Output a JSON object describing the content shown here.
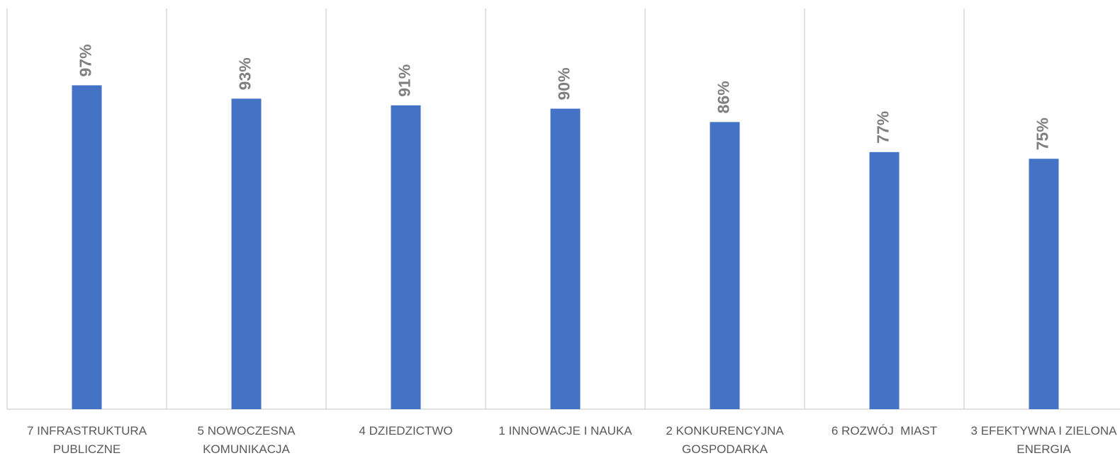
{
  "chart_data": {
    "type": "bar",
    "categories": [
      "7 INFRASTRUKTURA PUBLICZNE",
      "5 NOWOCZESNA KOMUNIKACJA",
      "4 DZIEDZICTWO",
      "1 INNOWACJE I NAUKA",
      "2 KONKURENCYJNA GOSPODARKA",
      "6 ROZWÓJ  MIAST",
      "3 EFEKTYWNA I ZIELONA ENERGIA"
    ],
    "values": [
      97,
      93,
      91,
      90,
      86,
      77,
      75
    ],
    "value_labels": [
      "97%",
      "93%",
      "91%",
      "90%",
      "86%",
      "77%",
      "75%"
    ],
    "color": "#4472c4",
    "ylim": [
      0,
      120
    ],
    "grid": true
  }
}
